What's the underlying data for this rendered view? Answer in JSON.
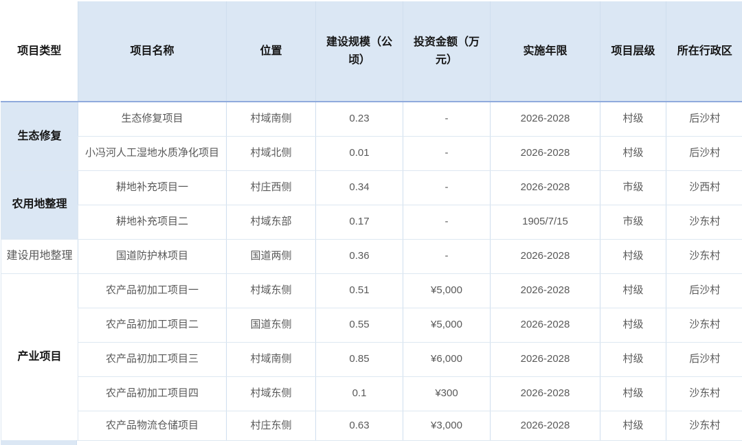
{
  "colors": {
    "header_bg": "#dbe7f4",
    "group_row_bg": "#dbe7f4",
    "header_text": "#151515",
    "body_text": "#595959",
    "grid_vertical": "#cfdeee",
    "grid_horizontal": "#dde7f1",
    "header_rule": "#8faadc"
  },
  "table": {
    "headers": [
      "项目类型",
      "项目名称",
      "位置",
      "建设规模（公顷）",
      "投资金额（万元）",
      "实施年限",
      "项目层级",
      "所在行政区"
    ],
    "groups": [
      {
        "type": "生态修复",
        "bold": true,
        "shaded": true,
        "rows": [
          {
            "name": "生态修复项目",
            "location": "村域南侧",
            "scale": "0.23",
            "investment": "-",
            "years": "2026-2028",
            "level": "村级",
            "district": "后沙村"
          },
          {
            "name": "小冯河人工湿地水质净化项目",
            "location": "村域北侧",
            "scale": "0.01",
            "investment": "-",
            "years": "2026-2028",
            "level": "村级",
            "district": "后沙村"
          }
        ]
      },
      {
        "type": "农用地整理",
        "bold": true,
        "shaded": true,
        "rows": [
          {
            "name": "耕地补充项目一",
            "location": "村庄西侧",
            "scale": "0.34",
            "investment": "-",
            "years": "2026-2028",
            "level": "市级",
            "district": "沙西村"
          },
          {
            "name": "耕地补充项目二",
            "location": "村域东部",
            "scale": "0.17",
            "investment": "-",
            "years": "1905/7/15",
            "level": "市级",
            "district": "沙东村"
          }
        ]
      },
      {
        "type": "建设用地整理",
        "bold": false,
        "shaded": false,
        "rows": [
          {
            "name": "国道防护林项目",
            "location": "国道两侧",
            "scale": "0.36",
            "investment": "-",
            "years": "2026-2028",
            "level": "村级",
            "district": "沙东村"
          }
        ]
      },
      {
        "type": "产业项目",
        "bold": true,
        "shaded": false,
        "rows": [
          {
            "name": "农产品初加工项目一",
            "location": "村域东侧",
            "scale": "0.51",
            "investment": "¥5,000",
            "years": "2026-2028",
            "level": "村级",
            "district": "后沙村"
          },
          {
            "name": "农产品初加工项目二",
            "location": "国道东侧",
            "scale": "0.55",
            "investment": "¥5,000",
            "years": "2026-2028",
            "level": "村级",
            "district": "沙东村"
          },
          {
            "name": "农产品初加工项目三",
            "location": "村域南侧",
            "scale": "0.85",
            "investment": "¥6,000",
            "years": "2026-2028",
            "level": "村级",
            "district": "后沙村"
          },
          {
            "name": "农产品初加工项目四",
            "location": "村域东侧",
            "scale": "0.1",
            "investment": "¥300",
            "years": "2026-2028",
            "level": "村级",
            "district": "沙东村"
          },
          {
            "name": "农产品物流仓储项目",
            "location": "村庄东侧",
            "scale": "0.63",
            "investment": "¥3,000",
            "years": "2026-2028",
            "level": "村级",
            "district": "沙东村"
          }
        ]
      }
    ],
    "partial_next_group_visible": true
  }
}
